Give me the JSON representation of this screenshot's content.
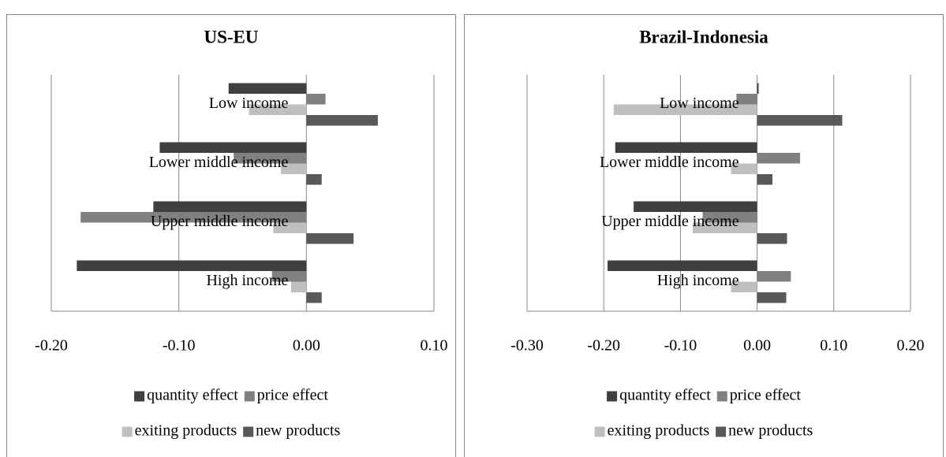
{
  "chart_data": [
    {
      "type": "bar",
      "orientation": "horizontal",
      "title": "US-EU",
      "categories": [
        "Low income",
        "Lower middle income",
        "Upper middle income",
        "High income"
      ],
      "series": [
        {
          "name": "quantity effect",
          "color": "#404040",
          "values": [
            -0.061,
            -0.115,
            -0.12,
            -0.18
          ]
        },
        {
          "name": "price effect",
          "color": "#808080",
          "values": [
            0.015,
            -0.057,
            -0.177,
            -0.027
          ]
        },
        {
          "name": "exiting products",
          "color": "#bfbfbf",
          "values": [
            -0.045,
            -0.02,
            -0.026,
            -0.012
          ]
        },
        {
          "name": "new products",
          "color": "#595959",
          "values": [
            0.056,
            0.012,
            0.037,
            0.012
          ]
        }
      ],
      "xlim": [
        -0.2,
        0.1
      ],
      "xticks": [
        {
          "value": -0.2,
          "label": "-0.20"
        },
        {
          "value": -0.1,
          "label": "-0.10"
        },
        {
          "value": 0,
          "label": "0.00"
        },
        {
          "value": 0.1,
          "label": "0.10"
        }
      ],
      "grid": true,
      "legend": "bottom"
    },
    {
      "type": "bar",
      "orientation": "horizontal",
      "title": "Brazil-Indonesia",
      "categories": [
        "Low income",
        "Lower middle income",
        "Upper middle income",
        "High income"
      ],
      "series": [
        {
          "name": "quantity effect",
          "color": "#404040",
          "values": [
            0.002,
            -0.185,
            -0.161,
            -0.195
          ]
        },
        {
          "name": "price effect",
          "color": "#808080",
          "values": [
            -0.027,
            0.056,
            -0.071,
            0.044
          ]
        },
        {
          "name": "exiting products",
          "color": "#bfbfbf",
          "values": [
            -0.187,
            -0.034,
            -0.084,
            -0.034
          ]
        },
        {
          "name": "new products",
          "color": "#595959",
          "values": [
            0.111,
            0.02,
            0.039,
            0.038
          ]
        }
      ],
      "xlim": [
        -0.3,
        0.2
      ],
      "xticks": [
        {
          "value": -0.3,
          "label": "-0.30"
        },
        {
          "value": -0.2,
          "label": "-0.20"
        },
        {
          "value": -0.1,
          "label": "-0.10"
        },
        {
          "value": 0,
          "label": "0.00"
        },
        {
          "value": 0.1,
          "label": "0.10"
        },
        {
          "value": 0.2,
          "label": "0.20"
        }
      ],
      "grid": true,
      "legend": "bottom"
    }
  ]
}
